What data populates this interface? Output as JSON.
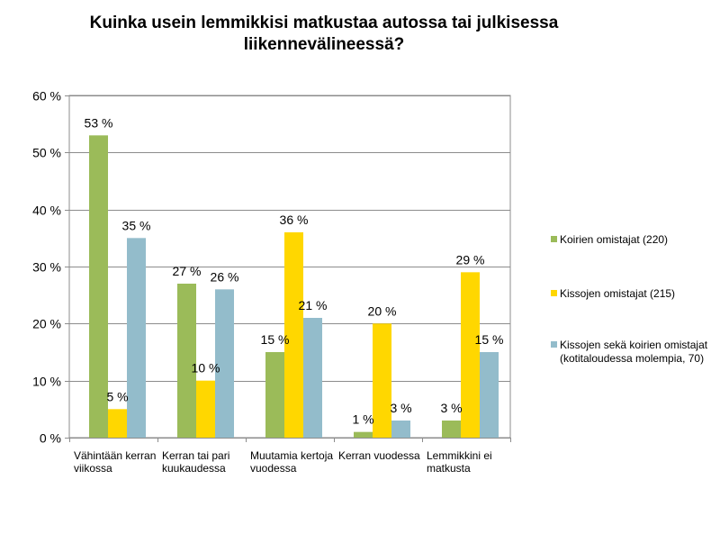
{
  "chart_data": {
    "type": "bar",
    "title": "Kuinka usein lemmikkisi matkustaa autossa tai julkisessa liikennevälineessä?",
    "title_lines": [
      "Kuinka usein lemmikkisi matkustaa autossa tai julkisessa",
      "liikennevälineessä?"
    ],
    "xlabel": "",
    "ylabel": "",
    "ylim": [
      0,
      60
    ],
    "yticks": [
      0,
      10,
      20,
      30,
      40,
      50,
      60
    ],
    "ytick_labels": [
      "0 %",
      "10 %",
      "20 %",
      "30 %",
      "40 %",
      "50 %",
      "60 %"
    ],
    "grid": true,
    "legend_position": "right",
    "categories": [
      [
        "Vähintään kerran",
        "viikossa"
      ],
      [
        "Kerran tai pari",
        "kuukaudessa"
      ],
      [
        "Muutamia kertoja",
        "vuodessa"
      ],
      [
        "Kerran vuodessa"
      ],
      [
        "Lemmikkini ei",
        "matkusta"
      ]
    ],
    "series": [
      {
        "name": "Koirien omistajat (220)",
        "legend_lines": [
          "Koirien omistajat (220)"
        ],
        "color": "#9BBB59",
        "values": [
          53,
          27,
          15,
          1,
          3
        ],
        "labels": [
          "53 %",
          "27 %",
          "15 %",
          "1 %",
          "3 %"
        ]
      },
      {
        "name": "Kissojen omistajat (215)",
        "legend_lines": [
          "Kissojen omistajat (215)"
        ],
        "color": "#FFD700",
        "values": [
          5,
          10,
          36,
          20,
          29
        ],
        "labels": [
          "5 %",
          "10 %",
          "36 %",
          "20 %",
          "29 %"
        ]
      },
      {
        "name": "Kissojen sekä koirien omistajat (kotitaloudessa molempia, 70)",
        "legend_lines": [
          "Kissojen sekä koirien omistajat",
          "(kotitaloudessa molempia, 70)"
        ],
        "color": "#93BCCB",
        "values": [
          35,
          26,
          21,
          3,
          15
        ],
        "labels": [
          "35 %",
          "26 %",
          "21 %",
          "3 %",
          "15 %"
        ]
      }
    ]
  }
}
